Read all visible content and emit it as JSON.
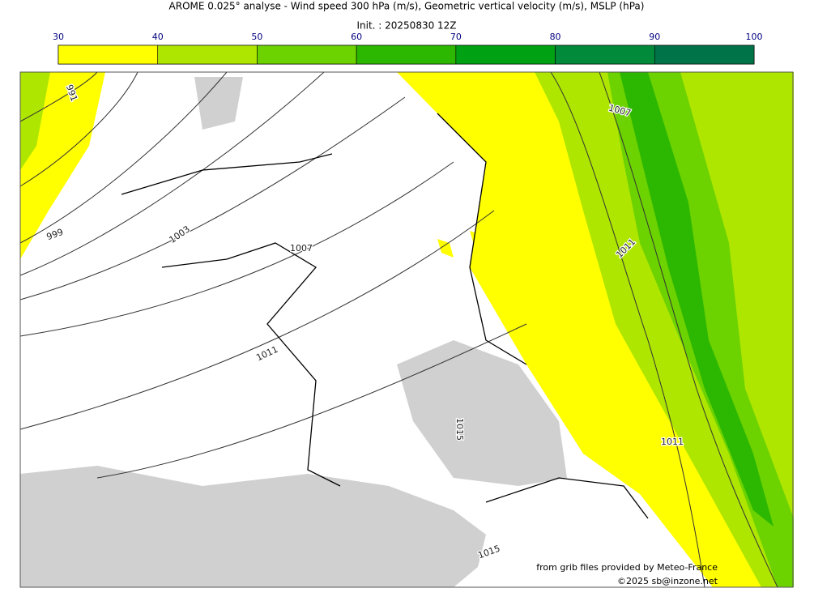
{
  "title": "AROME 0.025° analyse - Wind speed 300 hPa (m/s), Geometric vertical velocity (m/s), MSLP (hPa)",
  "subtitle": "Init. : 20250830 12Z",
  "colorbar": {
    "ticks": [
      30,
      40,
      50,
      60,
      70,
      80,
      90,
      100
    ],
    "colors": [
      "#ffff00",
      "#aee600",
      "#6cd200",
      "#2cb800",
      "#00a214",
      "#008a3a",
      "#007448"
    ]
  },
  "isobar_labels": [
    991,
    999,
    1003,
    1007,
    1011,
    1007,
    1011,
    1011,
    1015,
    1015
  ],
  "credits": [
    "from grib files provided by Meteo-France",
    "©2025 sb@inzone.net"
  ]
}
